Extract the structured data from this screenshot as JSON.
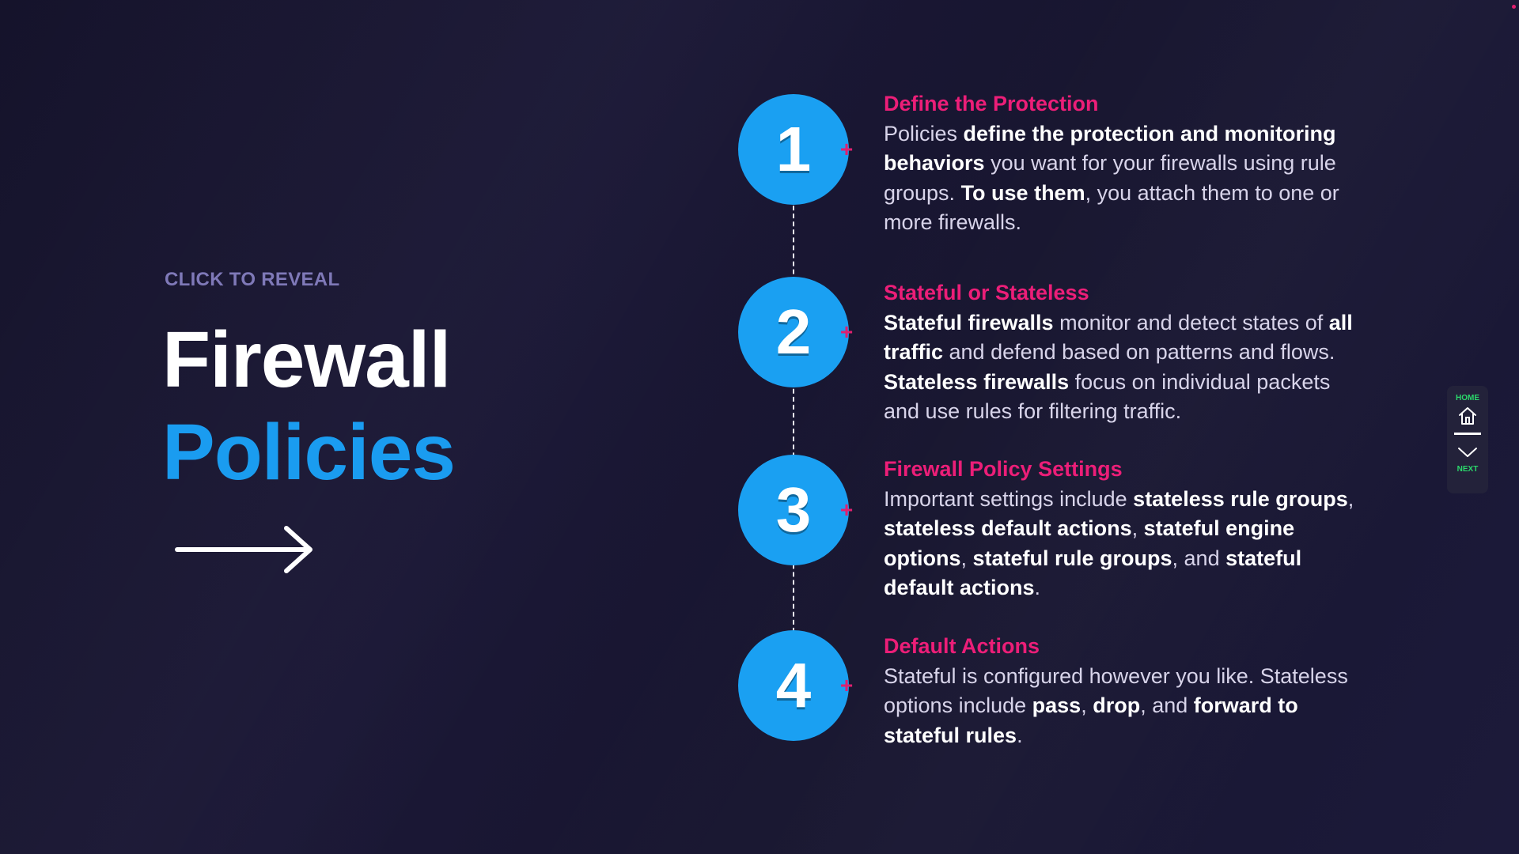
{
  "kicker": "CLICK TO REVEAL",
  "title": {
    "line1": "Firewall",
    "line2": "Policies"
  },
  "colors": {
    "title_accent": "#1a9cf0",
    "step_title": "#ec1e78",
    "circle": "#1aa0f2",
    "nav_label": "#2bd96b"
  },
  "steps": [
    {
      "number": "1",
      "title": "Define the Protection",
      "body": [
        {
          "t": "Policies ",
          "b": false
        },
        {
          "t": "define the protection and monitoring behaviors",
          "b": true
        },
        {
          "t": " you want for your firewalls using rule groups. ",
          "b": false
        },
        {
          "t": "To use them",
          "b": true
        },
        {
          "t": ", you attach them to one or more firewalls.",
          "b": false
        }
      ]
    },
    {
      "number": "2",
      "title": "Stateful or Stateless",
      "body": [
        {
          "t": "Stateful firewalls",
          "b": true
        },
        {
          "t": " monitor and detect states of ",
          "b": false
        },
        {
          "t": "all traffic",
          "b": true
        },
        {
          "t": " and defend based on patterns and flows. ",
          "b": false
        },
        {
          "t": "Stateless firewalls",
          "b": true
        },
        {
          "t": " focus on individual packets and use rules for filtering traffic.",
          "b": false
        }
      ]
    },
    {
      "number": "3",
      "title": "Firewall Policy Settings",
      "body": [
        {
          "t": "Important settings include ",
          "b": false
        },
        {
          "t": "stateless rule groups",
          "b": true
        },
        {
          "t": ", ",
          "b": false
        },
        {
          "t": "stateless default actions",
          "b": true
        },
        {
          "t": ", ",
          "b": false
        },
        {
          "t": "stateful engine options",
          "b": true
        },
        {
          "t": ", ",
          "b": false
        },
        {
          "t": "stateful rule groups",
          "b": true
        },
        {
          "t": ", and ",
          "b": false
        },
        {
          "t": "stateful default actions",
          "b": true
        },
        {
          "t": ".",
          "b": false
        }
      ]
    },
    {
      "number": "4",
      "title": "Default Actions",
      "body": [
        {
          "t": "Stateful is configured however you like. Stateless options include ",
          "b": false
        },
        {
          "t": "pass",
          "b": true
        },
        {
          "t": ", ",
          "b": false
        },
        {
          "t": "drop",
          "b": true
        },
        {
          "t": ", and ",
          "b": false
        },
        {
          "t": "forward to stateful rules",
          "b": true
        },
        {
          "t": ".",
          "b": false
        }
      ]
    }
  ],
  "nav": {
    "home_label": "HOME",
    "next_label": "NEXT",
    "home_icon": "home-icon",
    "next_icon": "chevron-down-icon"
  }
}
